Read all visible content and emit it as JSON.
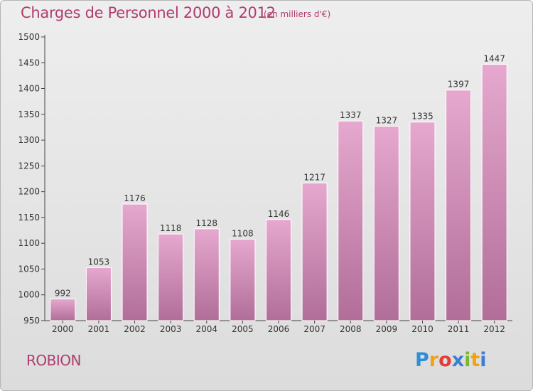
{
  "title": "Charges de Personnel 2000 à 2012",
  "subtitle": "(en milliers d'€)",
  "town": "ROBION",
  "brand": {
    "letters": [
      "P",
      "r",
      "o",
      "x",
      "i",
      "t",
      "i"
    ],
    "colors": [
      "#2f8fd6",
      "#f2a20f",
      "#e23c3c",
      "#3a7fd1",
      "#7ab62f",
      "#f2a20f",
      "#3a7fd1"
    ]
  },
  "colors": {
    "bar_top": "#e6a8cf",
    "bar_bottom": "#b06e98",
    "text": "#333333",
    "title": "#b03c6e"
  },
  "chart_data": {
    "type": "bar",
    "categories": [
      "2000",
      "2001",
      "2002",
      "2003",
      "2004",
      "2005",
      "2006",
      "2007",
      "2008",
      "2009",
      "2010",
      "2011",
      "2012"
    ],
    "values": [
      992,
      1053,
      1176,
      1118,
      1128,
      1108,
      1146,
      1217,
      1337,
      1327,
      1335,
      1397,
      1447
    ],
    "yticks": [
      950,
      1000,
      1050,
      1100,
      1150,
      1200,
      1250,
      1300,
      1350,
      1400,
      1450,
      1500
    ],
    "ylim": [
      950,
      1500
    ],
    "grid": false
  }
}
